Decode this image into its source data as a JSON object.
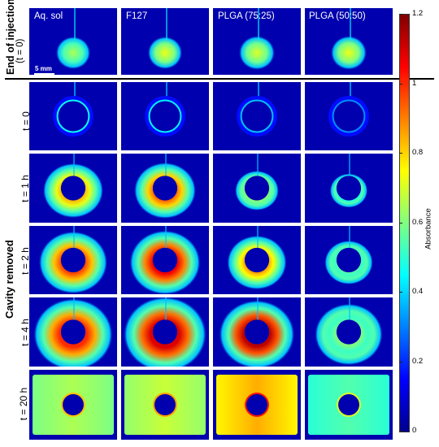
{
  "figure": {
    "column_titles": [
      "Aq. sol",
      "F127",
      "PLGA (75:25)",
      "PLGA (50:50)"
    ],
    "section_labels": {
      "top": {
        "line1": "End of injection",
        "line2": "(t = 0)"
      },
      "bottom": "Cavity removed"
    },
    "row_labels": [
      "t = 0",
      "t = 1 h",
      "t = 2 h",
      "t = 4 h",
      "t = 20 h"
    ],
    "scale_bar": "5 mm"
  },
  "colorbar": {
    "label": "Absorbance",
    "min": 0,
    "max": 1.2,
    "ticks": [
      "1.2",
      "1",
      "0.8",
      "0.6",
      "0.4",
      "0.2",
      "0"
    ],
    "colors": [
      "#00008f",
      "#0000ff",
      "#0080ff",
      "#00ffff",
      "#80ff80",
      "#ffff00",
      "#ff8000",
      "#ff0000",
      "#800000"
    ]
  },
  "panels": [
    [
      {
        "type": "blob",
        "r": 0.5,
        "i": 0.55
      },
      {
        "type": "blob",
        "r": 0.5,
        "i": 0.62
      },
      {
        "type": "blob",
        "r": 0.52,
        "i": 0.6
      },
      {
        "type": "blob",
        "r": 0.52,
        "i": 0.62
      }
    ],
    [
      {
        "type": "ring",
        "r": 0.25,
        "i": 0.22
      },
      {
        "type": "ring",
        "r": 0.25,
        "i": 0.2
      },
      {
        "type": "ring",
        "r": 0.22,
        "i": 0.15
      },
      {
        "type": "ring",
        "r": 0.24,
        "i": 0.1
      }
    ],
    [
      {
        "type": "halo",
        "r": 0.8,
        "i": 0.72
      },
      {
        "type": "halo",
        "r": 0.82,
        "i": 0.8
      },
      {
        "type": "halo",
        "r": 0.58,
        "i": 0.58
      },
      {
        "type": "halo",
        "r": 0.5,
        "i": 0.45
      }
    ],
    [
      {
        "type": "halo",
        "r": 0.92,
        "i": 0.82
      },
      {
        "type": "halo",
        "r": 0.95,
        "i": 0.9
      },
      {
        "type": "halo",
        "r": 0.8,
        "i": 0.75
      },
      {
        "type": "halo",
        "r": 0.65,
        "i": 0.5
      }
    ],
    [
      {
        "type": "halo",
        "r": 1.05,
        "i": 0.85
      },
      {
        "type": "halo",
        "r": 1.1,
        "i": 0.92
      },
      {
        "type": "halo",
        "r": 1.0,
        "i": 0.95
      },
      {
        "type": "halo",
        "r": 0.9,
        "i": 0.5
      }
    ],
    [
      {
        "type": "flat",
        "r": 1.3,
        "i": 0.55
      },
      {
        "type": "flat",
        "r": 1.3,
        "i": 0.58
      },
      {
        "type": "flat",
        "r": 1.3,
        "i": 0.72
      },
      {
        "type": "flat",
        "r": 1.3,
        "i": 0.45
      }
    ]
  ]
}
